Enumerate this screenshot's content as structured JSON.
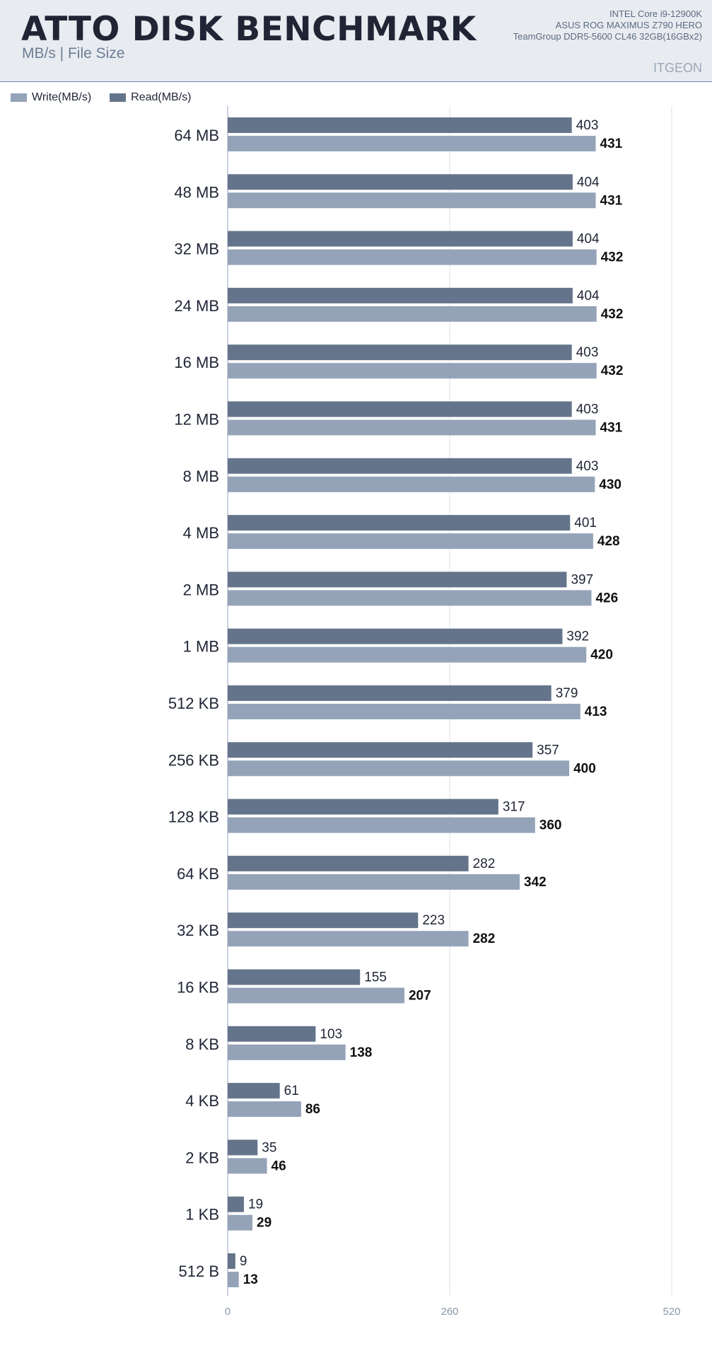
{
  "header": {
    "title": "ATTO DISK BENCHMARK",
    "subtitle": "MB/s | File Size",
    "specs": [
      "INTEL Core i9-12900K",
      "ASUS ROG MAXIMUS Z790 HERO",
      "TeamGroup DDR5-5600 CL46 32GB(16GBx2)"
    ],
    "brand": "ITGEON"
  },
  "colors": {
    "write": "#94a3b8",
    "read": "#64748b",
    "header_bg": "#e8ecf1",
    "accent_line": "#6b86c4"
  },
  "chart_data": {
    "type": "bar",
    "orientation": "horizontal",
    "categories": [
      "64 MB",
      "48 MB",
      "32 MB",
      "24 MB",
      "16 MB",
      "12 MB",
      "8 MB",
      "4 MB",
      "2 MB",
      "1 MB",
      "512 KB",
      "256 KB",
      "128 KB",
      "64 KB",
      "32 KB",
      "16 KB",
      "8 KB",
      "4 KB",
      "2 KB",
      "1 KB",
      "512 B"
    ],
    "series": [
      {
        "name": "Write(MB/s)",
        "values": [
          431,
          431,
          432,
          432,
          432,
          431,
          430,
          428,
          426,
          420,
          413,
          400,
          360,
          342,
          282,
          207,
          138,
          86,
          46,
          29,
          13
        ]
      },
      {
        "name": "Read(MB/s)",
        "values": [
          403,
          404,
          404,
          404,
          403,
          403,
          403,
          401,
          397,
          392,
          379,
          357,
          317,
          282,
          223,
          155,
          103,
          61,
          35,
          19,
          9
        ]
      }
    ],
    "xlim": [
      0,
      520
    ],
    "xticks": [
      "0",
      "260",
      "520"
    ],
    "grid": true,
    "legend_position": "top-left"
  }
}
